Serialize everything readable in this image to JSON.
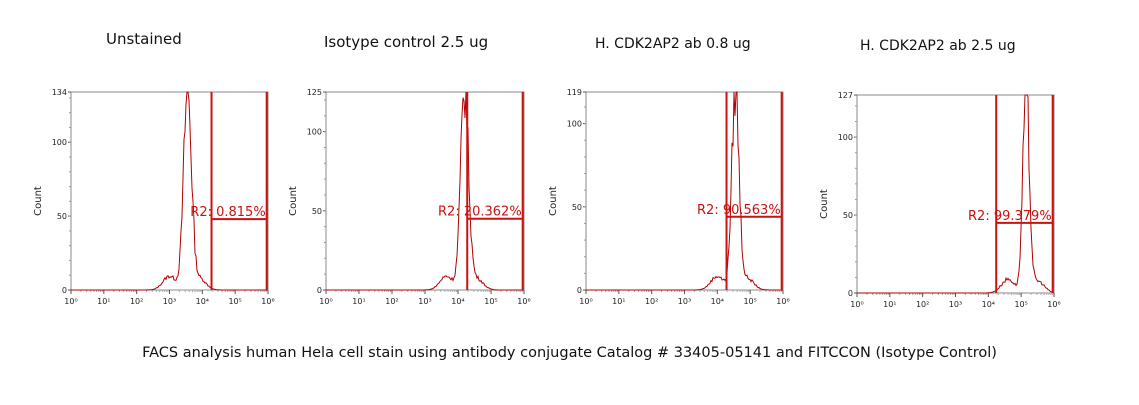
{
  "caption": "FACS analysis human Hela cell stain using antibody conjugate Catalog # 33405-05141 and FITCCON (Isotype Control)",
  "colors": {
    "histogram": "#b00000",
    "gate": "#cc1111",
    "axis": "#888888"
  },
  "chart_data": [
    {
      "type": "histogram",
      "title": "Unstained",
      "ylabel": "Count",
      "xscale": "log",
      "xlim": [
        1,
        1000000
      ],
      "ylim": [
        0,
        134
      ],
      "yticks": [
        0,
        50,
        100,
        134
      ],
      "xticks": [
        "10⁰",
        "10¹",
        "10²",
        "10³",
        "10⁴",
        "10⁵",
        "10⁶"
      ],
      "peak_log10": 3.55,
      "peak_width": 0.12,
      "peak_count": 134,
      "gate": {
        "label": "R2: 0.815%",
        "from_log10": 4.28,
        "to_log10": 5.96,
        "level": 48
      }
    },
    {
      "type": "histogram",
      "title": "Isotype control 2.5 ug",
      "ylabel": "Count",
      "xscale": "log",
      "xlim": [
        1,
        1000000
      ],
      "ylim": [
        0,
        125
      ],
      "yticks": [
        0,
        50,
        100,
        125
      ],
      "xticks": [
        "10⁰",
        "10¹",
        "10²",
        "10³",
        "10⁴",
        "10⁵",
        "10⁶"
      ],
      "peak_log10": 4.2,
      "peak_width": 0.12,
      "peak_count": 125,
      "gate": {
        "label": "R2: 20.362%",
        "from_log10": 4.28,
        "to_log10": 5.96,
        "level": 45
      }
    },
    {
      "type": "histogram",
      "title": "H. CDK2AP2 ab 0.8 ug",
      "ylabel": "Count",
      "xscale": "log",
      "xlim": [
        1,
        1000000
      ],
      "ylim": [
        0,
        119
      ],
      "yticks": [
        0,
        50,
        100,
        119
      ],
      "xticks": [
        "10⁰",
        "10¹",
        "10²",
        "10³",
        "10⁴",
        "10⁵",
        "10⁶"
      ],
      "peak_log10": 4.55,
      "peak_width": 0.11,
      "peak_count": 119,
      "gate": {
        "label": "R2: 90.563%",
        "from_log10": 4.28,
        "to_log10": 5.96,
        "level": 44
      }
    },
    {
      "type": "histogram",
      "title": "H. CDK2AP2 ab 2.5 ug",
      "ylabel": "Count",
      "xscale": "log",
      "xlim": [
        1,
        1000000
      ],
      "ylim": [
        0,
        127
      ],
      "yticks": [
        0,
        50,
        100,
        127
      ],
      "xticks": [
        "10⁰",
        "10¹",
        "10²",
        "10³",
        "10⁴",
        "10⁵",
        "10⁶"
      ],
      "peak_log10": 5.15,
      "peak_width": 0.1,
      "peak_count": 127,
      "gate": {
        "label": "R2: 99.379%",
        "from_log10": 4.24,
        "to_log10": 5.96,
        "level": 45
      }
    }
  ]
}
